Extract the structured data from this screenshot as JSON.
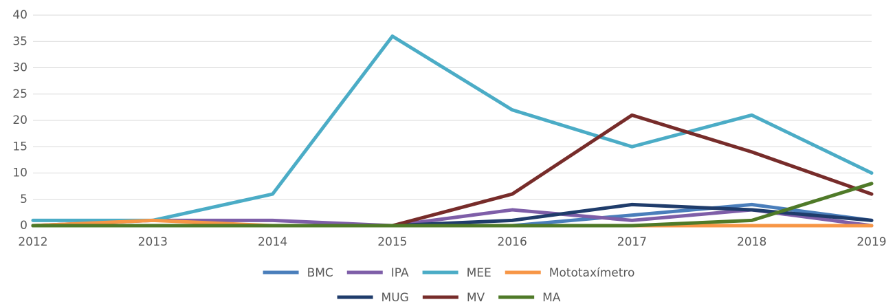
{
  "chart_data": {
    "type": "line",
    "x": [
      2012,
      2013,
      2014,
      2015,
      2016,
      2017,
      2018,
      2019
    ],
    "xlim": [
      2012,
      2019
    ],
    "xticks": [
      2012,
      2013,
      2014,
      2015,
      2016,
      2017,
      2018,
      2019
    ],
    "ylim": [
      0,
      40
    ],
    "yticks": [
      0,
      5,
      10,
      15,
      20,
      25,
      30,
      35,
      40
    ],
    "grid": true,
    "legend": "bottom",
    "series": [
      {
        "name": "BMC",
        "color": "#4a7ebb",
        "values": [
          0,
          0,
          0,
          0,
          0,
          2,
          4,
          1
        ]
      },
      {
        "name": "IPA",
        "color": "#7e5ea8",
        "values": [
          0,
          1,
          1,
          0,
          3,
          1,
          3,
          0
        ]
      },
      {
        "name": "MEE",
        "color": "#4bacc6",
        "values": [
          1,
          1,
          6,
          36,
          22,
          15,
          21,
          10
        ]
      },
      {
        "name": "Mototaxímetro",
        "color": "#f79646",
        "values": [
          0,
          1,
          0,
          0,
          0,
          0,
          0,
          0
        ]
      },
      {
        "name": "MUG",
        "color": "#1f3c6b",
        "values": [
          0,
          0,
          0,
          0,
          1,
          4,
          3,
          1
        ]
      },
      {
        "name": "MV",
        "color": "#772c2a",
        "values": [
          0,
          0,
          0,
          0,
          6,
          21,
          14,
          6
        ]
      },
      {
        "name": "MA",
        "color": "#4f7a28",
        "values": [
          0,
          0,
          0,
          0,
          0,
          0,
          1,
          8
        ]
      }
    ]
  }
}
